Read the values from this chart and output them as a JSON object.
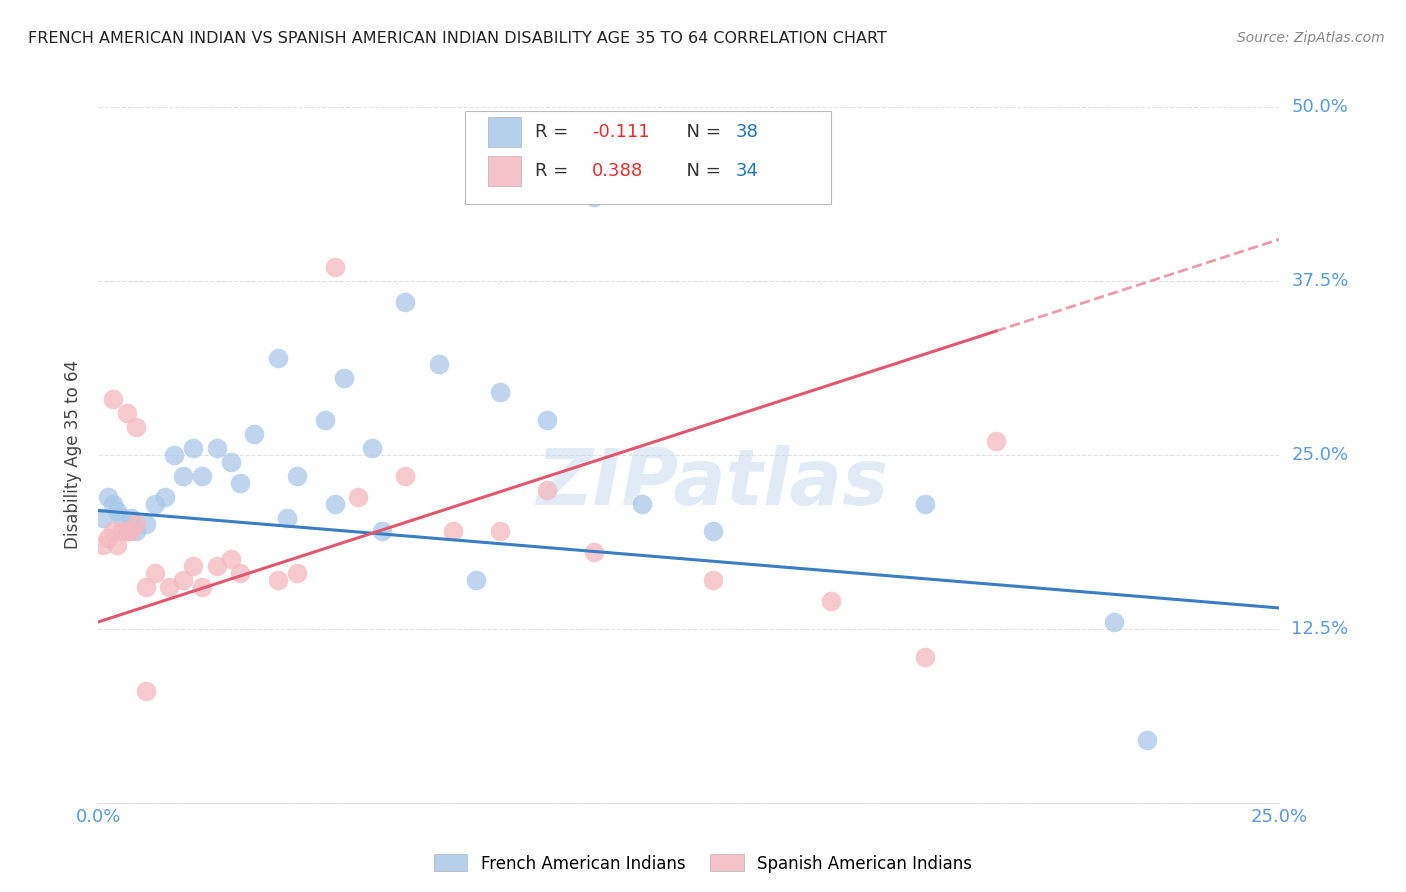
{
  "title": "FRENCH AMERICAN INDIAN VS SPANISH AMERICAN INDIAN DISABILITY AGE 35 TO 64 CORRELATION CHART",
  "source": "Source: ZipAtlas.com",
  "ylabel": "Disability Age 35 to 64",
  "xlim": [
    0.0,
    0.25
  ],
  "ylim": [
    0.0,
    0.5
  ],
  "blue_r": -0.111,
  "blue_n": 38,
  "pink_r": 0.388,
  "pink_n": 34,
  "watermark": "ZIPatlas",
  "blue_color": "#a8c8e8",
  "blue_line_color": "#3a7fc1",
  "pink_color": "#f4b8c0",
  "pink_line_color": "#e05870",
  "legend_blue_label": "French American Indians",
  "legend_pink_label": "Spanish American Indians",
  "blue_points_x": [
    0.001,
    0.002,
    0.003,
    0.004,
    0.005,
    0.006,
    0.007,
    0.008,
    0.01,
    0.012,
    0.014,
    0.016,
    0.018,
    0.02,
    0.022,
    0.025,
    0.028,
    0.03,
    0.033,
    0.038,
    0.042,
    0.048,
    0.052,
    0.058,
    0.065,
    0.072,
    0.085,
    0.095,
    0.105,
    0.115,
    0.13,
    0.175,
    0.215,
    0.222,
    0.05,
    0.04,
    0.06,
    0.08
  ],
  "blue_points_y": [
    0.205,
    0.22,
    0.215,
    0.21,
    0.205,
    0.195,
    0.205,
    0.195,
    0.2,
    0.215,
    0.22,
    0.25,
    0.235,
    0.255,
    0.235,
    0.255,
    0.245,
    0.23,
    0.265,
    0.32,
    0.235,
    0.275,
    0.305,
    0.255,
    0.36,
    0.315,
    0.295,
    0.275,
    0.435,
    0.215,
    0.195,
    0.215,
    0.13,
    0.045,
    0.215,
    0.205,
    0.195,
    0.16
  ],
  "pink_points_x": [
    0.001,
    0.002,
    0.003,
    0.004,
    0.005,
    0.006,
    0.007,
    0.008,
    0.01,
    0.012,
    0.015,
    0.018,
    0.02,
    0.022,
    0.025,
    0.028,
    0.03,
    0.038,
    0.042,
    0.05,
    0.055,
    0.065,
    0.075,
    0.085,
    0.095,
    0.105,
    0.13,
    0.155,
    0.175,
    0.19,
    0.003,
    0.006,
    0.008,
    0.01
  ],
  "pink_points_y": [
    0.185,
    0.19,
    0.195,
    0.185,
    0.195,
    0.195,
    0.195,
    0.2,
    0.155,
    0.165,
    0.155,
    0.16,
    0.17,
    0.155,
    0.17,
    0.175,
    0.165,
    0.16,
    0.165,
    0.385,
    0.22,
    0.235,
    0.195,
    0.195,
    0.225,
    0.18,
    0.16,
    0.145,
    0.105,
    0.26,
    0.29,
    0.28,
    0.27,
    0.08
  ],
  "grid_color": "#e0e0e0",
  "tick_color": "#5b9bd5",
  "blue_line_intercept": 0.21,
  "blue_line_slope": -0.28,
  "pink_line_intercept": 0.13,
  "pink_line_slope": 1.1
}
